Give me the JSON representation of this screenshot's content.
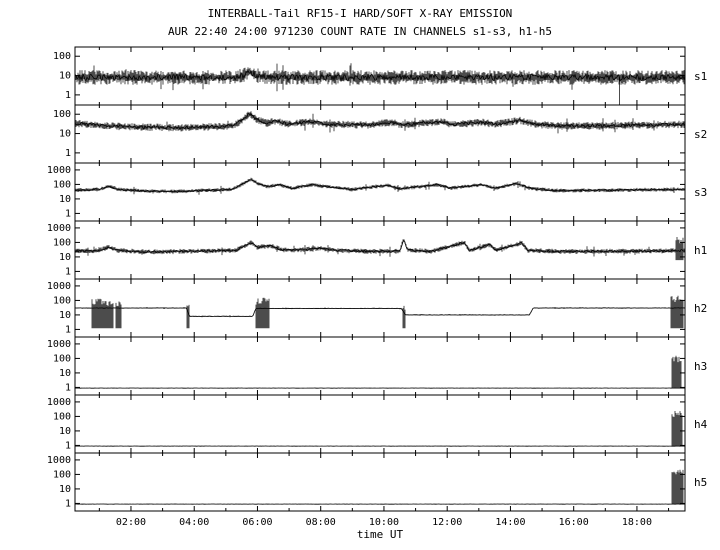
{
  "title": "INTERBALL-Tail RF15-I HARD/SOFT X-RAY EMISSION",
  "subtitle": "AUR 22:40 24:00 971230  COUNT RATE IN CHANNELS s1-s3, h1-h5",
  "colors": {
    "fg": "#000000",
    "bg": "#ffffff"
  },
  "chart_data": {
    "type": "line",
    "title": "INTERBALL-Tail RF15-I HARD/SOFT X-RAY EMISSION",
    "subtitle": "AUR 22:40 24:00 971230  COUNT RATE IN CHANNELS s1-s3, h1-h5",
    "xlabel": "time UT",
    "y_scale": "log",
    "grid": false,
    "x_hours_range": [
      0.23,
      19.52
    ],
    "x_minor_step": 1,
    "x_major_ticks": [
      {
        "t": 2,
        "label": "02:00"
      },
      {
        "t": 4,
        "label": "04:00"
      },
      {
        "t": 6,
        "label": "06:00"
      },
      {
        "t": 8,
        "label": "08:00"
      },
      {
        "t": 10,
        "label": "10:00"
      },
      {
        "t": 12,
        "label": "12:00"
      },
      {
        "t": 14,
        "label": "14:00"
      },
      {
        "t": 16,
        "label": "16:00"
      },
      {
        "t": 18,
        "label": "18:00"
      }
    ],
    "panels": [
      {
        "label": "s1",
        "ylim": [
          0.3,
          300
        ],
        "y_ticks": [
          1,
          10,
          100
        ],
        "noise_dec": 0.33,
        "trend": [
          [
            0.23,
            8
          ],
          [
            5.3,
            8
          ],
          [
            5.55,
            10
          ],
          [
            5.75,
            16
          ],
          [
            6.0,
            10
          ],
          [
            6.3,
            8
          ],
          [
            11.8,
            8
          ],
          [
            12.1,
            9
          ],
          [
            12.4,
            8
          ],
          [
            19.52,
            8
          ]
        ],
        "downspikes": [
          {
            "t": 17.45,
            "v": 0.15
          }
        ],
        "blocks": []
      },
      {
        "label": "s2",
        "ylim": [
          0.3,
          300
        ],
        "y_ticks": [
          1,
          10,
          100
        ],
        "noise_dec": 0.17,
        "trend": [
          [
            0.23,
            35
          ],
          [
            0.8,
            28
          ],
          [
            2,
            22
          ],
          [
            3.5,
            20
          ],
          [
            5.2,
            24
          ],
          [
            5.6,
            60
          ],
          [
            5.75,
            110
          ],
          [
            5.95,
            55
          ],
          [
            6.3,
            35
          ],
          [
            6.6,
            45
          ],
          [
            7.0,
            30
          ],
          [
            7.7,
            42
          ],
          [
            8.2,
            30
          ],
          [
            9.5,
            28
          ],
          [
            10.2,
            38
          ],
          [
            10.6,
            28
          ],
          [
            11.8,
            40
          ],
          [
            12.2,
            30
          ],
          [
            13.1,
            38
          ],
          [
            13.5,
            30
          ],
          [
            14.3,
            48
          ],
          [
            14.8,
            30
          ],
          [
            15.5,
            25
          ],
          [
            17.0,
            25
          ],
          [
            18.5,
            28
          ],
          [
            19.52,
            30
          ]
        ],
        "downspikes": [],
        "blocks": []
      },
      {
        "label": "s3",
        "ylim": [
          0.3,
          3000
        ],
        "y_ticks": [
          1,
          10,
          100,
          1000
        ],
        "noise_dec": 0.12,
        "trend": [
          [
            0.23,
            40
          ],
          [
            1.0,
            45
          ],
          [
            1.3,
            75
          ],
          [
            1.6,
            45
          ],
          [
            2.5,
            35
          ],
          [
            3.5,
            33
          ],
          [
            5.2,
            45
          ],
          [
            5.6,
            130
          ],
          [
            5.8,
            230
          ],
          [
            6.0,
            120
          ],
          [
            6.3,
            70
          ],
          [
            6.7,
            95
          ],
          [
            7.1,
            55
          ],
          [
            7.7,
            95
          ],
          [
            8.3,
            65
          ],
          [
            9.0,
            45
          ],
          [
            10.1,
            90
          ],
          [
            10.5,
            50
          ],
          [
            11.7,
            95
          ],
          [
            12.1,
            55
          ],
          [
            13.1,
            95
          ],
          [
            13.5,
            55
          ],
          [
            14.2,
            115
          ],
          [
            14.7,
            50
          ],
          [
            15.5,
            38
          ],
          [
            17.0,
            40
          ],
          [
            19.52,
            45
          ]
        ],
        "downspikes": [],
        "blocks": []
      },
      {
        "label": "h1",
        "ylim": [
          0.3,
          3000
        ],
        "y_ticks": [
          1,
          10,
          100,
          1000
        ],
        "noise_dec": 0.15,
        "trend": [
          [
            0.23,
            25
          ],
          [
            1.0,
            28
          ],
          [
            1.3,
            48
          ],
          [
            1.6,
            28
          ],
          [
            2.5,
            22
          ],
          [
            5.3,
            28
          ],
          [
            5.6,
            60
          ],
          [
            5.8,
            95
          ],
          [
            6.0,
            45
          ],
          [
            6.4,
            60
          ],
          [
            6.8,
            30
          ],
          [
            7.5,
            32
          ],
          [
            8.0,
            40
          ],
          [
            8.5,
            28
          ],
          [
            9.5,
            24
          ],
          [
            10.5,
            24
          ],
          [
            10.62,
            170
          ],
          [
            10.75,
            30
          ],
          [
            11.5,
            24
          ],
          [
            12.55,
            100
          ],
          [
            12.7,
            28
          ],
          [
            13.35,
            70
          ],
          [
            13.55,
            28
          ],
          [
            14.35,
            95
          ],
          [
            14.55,
            28
          ],
          [
            15.5,
            24
          ],
          [
            18.5,
            25
          ],
          [
            19.52,
            28
          ]
        ],
        "downspikes": [],
        "blocks": [
          {
            "t0": 19.22,
            "t1": 19.45,
            "vmin": 6,
            "vmax": 260
          }
        ]
      },
      {
        "label": "h2",
        "ylim": [
          0.3,
          3000
        ],
        "y_ticks": [
          1,
          10,
          100,
          1000
        ],
        "noise_dec": 0.03,
        "trend": [
          [
            0.23,
            30
          ],
          [
            3.75,
            30
          ],
          [
            3.85,
            8
          ],
          [
            5.85,
            8
          ],
          [
            5.95,
            28
          ],
          [
            10.55,
            28
          ],
          [
            10.68,
            10
          ],
          [
            14.6,
            10
          ],
          [
            14.72,
            30
          ],
          [
            19.52,
            30
          ]
        ],
        "downspikes": [],
        "blocks": [
          {
            "t0": 0.78,
            "t1": 1.42,
            "vmin": 1.2,
            "vmax": 130
          },
          {
            "t0": 1.52,
            "t1": 1.68,
            "vmin": 1.2,
            "vmax": 130
          },
          {
            "t0": 3.76,
            "t1": 3.84,
            "vmin": 1.2,
            "vmax": 70
          },
          {
            "t0": 5.95,
            "t1": 6.35,
            "vmin": 1.2,
            "vmax": 160
          },
          {
            "t0": 10.6,
            "t1": 10.68,
            "vmin": 1.2,
            "vmax": 70
          },
          {
            "t0": 19.08,
            "t1": 19.45,
            "vmin": 1.2,
            "vmax": 220
          }
        ]
      },
      {
        "label": "h3",
        "ylim": [
          0.3,
          3000
        ],
        "y_ticks": [
          1,
          10,
          100,
          1000
        ],
        "noise_dec": 0.015,
        "trend": [
          [
            0.23,
            0.9
          ],
          [
            19.52,
            0.9
          ]
        ],
        "downspikes": [],
        "blocks": [
          {
            "t0": 19.12,
            "t1": 19.4,
            "vmin": 0.9,
            "vmax": 160
          }
        ]
      },
      {
        "label": "h4",
        "ylim": [
          0.3,
          3000
        ],
        "y_ticks": [
          1,
          10,
          100,
          1000
        ],
        "noise_dec": 0.015,
        "trend": [
          [
            0.23,
            0.9
          ],
          [
            19.52,
            0.9
          ]
        ],
        "downspikes": [],
        "blocks": [
          {
            "t0": 19.12,
            "t1": 19.42,
            "vmin": 0.9,
            "vmax": 260
          }
        ]
      },
      {
        "label": "h5",
        "ylim": [
          0.3,
          3000
        ],
        "y_ticks": [
          1,
          10,
          100,
          1000
        ],
        "noise_dec": 0.015,
        "trend": [
          [
            0.23,
            0.9
          ],
          [
            19.52,
            0.9
          ]
        ],
        "downspikes": [],
        "blocks": [
          {
            "t0": 19.1,
            "t1": 19.45,
            "vmin": 0.9,
            "vmax": 320
          }
        ]
      }
    ]
  }
}
